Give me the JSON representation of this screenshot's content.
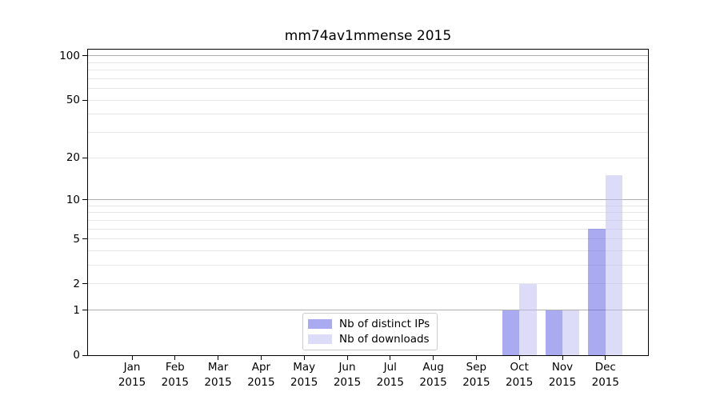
{
  "chart_data": {
    "type": "bar",
    "title": "mm74av1mmense 2015",
    "categories": [
      {
        "month": "Jan",
        "year": "2015"
      },
      {
        "month": "Feb",
        "year": "2015"
      },
      {
        "month": "Mar",
        "year": "2015"
      },
      {
        "month": "Apr",
        "year": "2015"
      },
      {
        "month": "May",
        "year": "2015"
      },
      {
        "month": "Jun",
        "year": "2015"
      },
      {
        "month": "Jul",
        "year": "2015"
      },
      {
        "month": "Aug",
        "year": "2015"
      },
      {
        "month": "Sep",
        "year": "2015"
      },
      {
        "month": "Oct",
        "year": "2015"
      },
      {
        "month": "Nov",
        "year": "2015"
      },
      {
        "month": "Dec",
        "year": "2015"
      }
    ],
    "series": [
      {
        "name": "Nb of distinct IPs",
        "color": "#5555E1",
        "alpha": 0.5,
        "values": [
          0,
          0,
          0,
          0,
          0,
          0,
          0,
          0,
          0,
          1,
          1,
          6
        ]
      },
      {
        "name": "Nb of downloads",
        "color": "#B9B9F1",
        "alpha": 0.5,
        "values": [
          0,
          0,
          0,
          0,
          0,
          0,
          0,
          0,
          0,
          2,
          1,
          15
        ]
      }
    ],
    "yscale": "log1p",
    "ylim": [
      0,
      110
    ],
    "yticks": [
      0,
      1,
      2,
      5,
      10,
      20,
      50,
      100
    ],
    "grid": {
      "major": [
        1,
        10,
        100
      ],
      "minor": [
        2,
        3,
        4,
        5,
        6,
        7,
        8,
        9,
        20,
        30,
        40,
        50,
        60,
        70,
        80,
        90
      ]
    },
    "legend": {
      "position": "lower-center"
    },
    "style": {
      "grid_major": "#B0B0B0",
      "grid_minor": "#E8E8E8",
      "axis": "#000000",
      "legend_border": "#CCCCCC",
      "text": "#000000",
      "background": "#FFFFFF"
    }
  }
}
